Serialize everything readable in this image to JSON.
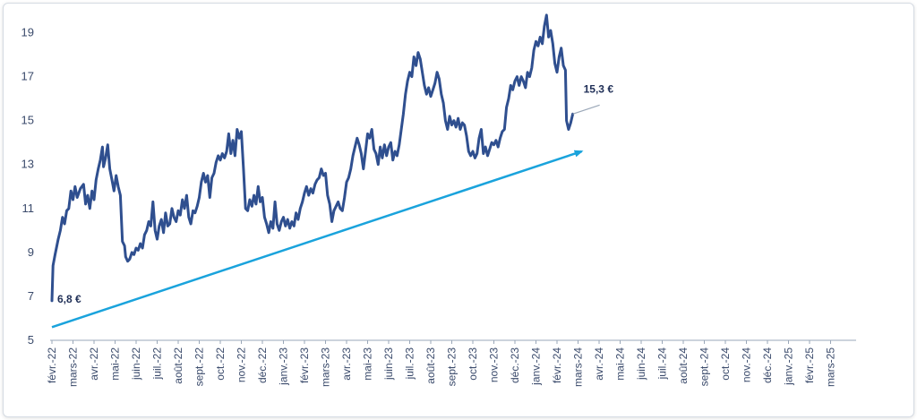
{
  "chart_data": {
    "type": "line",
    "title": "",
    "xlabel": "",
    "ylabel": "",
    "ylim": [
      5,
      20
    ],
    "yticks": [
      5,
      7,
      9,
      11,
      13,
      15,
      17,
      19
    ],
    "grid": false,
    "legend": "none",
    "line_color": "#2f4f8f",
    "trend_color": "#1aa3dc",
    "axis_color": "#9aa7b8",
    "x_labels": [
      "févr.-22",
      "mars-22",
      "avr.-22",
      "mai-22",
      "juin-22",
      "juil.-22",
      "août-22",
      "sept.-22",
      "oct.-22",
      "nov.-22",
      "déc.-22",
      "janv.-23",
      "févr.-23",
      "mars-23",
      "avr.-23",
      "mai-23",
      "juin-23",
      "juil.-23",
      "août-23",
      "sept.-23",
      "oct.-23",
      "nov.-23",
      "déc.-23",
      "janv.-24",
      "févr.-24",
      "mars-24",
      "avr.-24",
      "mai-24",
      "juin-24",
      "juil.-24",
      "août-24",
      "sept.-24",
      "oct.-24",
      "nov.-24",
      "déc.-24",
      "janv.-25",
      "févr.-25",
      "mars-25"
    ],
    "series": [
      {
        "values": [
          [
            0.0,
            6.8
          ],
          [
            0.05,
            8.4
          ],
          [
            0.15,
            8.9
          ],
          [
            0.3,
            9.6
          ],
          [
            0.4,
            10.0
          ],
          [
            0.5,
            10.6
          ],
          [
            0.6,
            10.3
          ],
          [
            0.7,
            10.9
          ],
          [
            0.8,
            11.0
          ],
          [
            0.9,
            11.8
          ],
          [
            1.0,
            11.4
          ],
          [
            1.1,
            12.0
          ],
          [
            1.2,
            11.5
          ],
          [
            1.35,
            11.9
          ],
          [
            1.5,
            12.1
          ],
          [
            1.6,
            11.2
          ],
          [
            1.7,
            11.6
          ],
          [
            1.8,
            11.0
          ],
          [
            1.9,
            11.8
          ],
          [
            2.0,
            11.4
          ],
          [
            2.1,
            12.3
          ],
          [
            2.2,
            12.8
          ],
          [
            2.3,
            13.2
          ],
          [
            2.4,
            13.8
          ],
          [
            2.45,
            12.9
          ],
          [
            2.55,
            13.3
          ],
          [
            2.65,
            13.9
          ],
          [
            2.75,
            12.8
          ],
          [
            2.85,
            12.3
          ],
          [
            2.95,
            11.8
          ],
          [
            3.05,
            12.5
          ],
          [
            3.15,
            12.0
          ],
          [
            3.25,
            11.6
          ],
          [
            3.35,
            9.5
          ],
          [
            3.45,
            9.3
          ],
          [
            3.5,
            8.8
          ],
          [
            3.6,
            8.6
          ],
          [
            3.7,
            8.7
          ],
          [
            3.8,
            9.0
          ],
          [
            3.9,
            8.9
          ],
          [
            4.0,
            9.2
          ],
          [
            4.1,
            9.1
          ],
          [
            4.2,
            9.4
          ],
          [
            4.3,
            9.2
          ],
          [
            4.4,
            9.8
          ],
          [
            4.5,
            10.0
          ],
          [
            4.6,
            10.4
          ],
          [
            4.7,
            10.2
          ],
          [
            4.8,
            11.3
          ],
          [
            4.9,
            10.0
          ],
          [
            5.0,
            9.6
          ],
          [
            5.1,
            10.2
          ],
          [
            5.2,
            10.5
          ],
          [
            5.3,
            9.9
          ],
          [
            5.4,
            10.8
          ],
          [
            5.5,
            10.2
          ],
          [
            5.6,
            10.3
          ],
          [
            5.7,
            11.0
          ],
          [
            5.8,
            10.6
          ],
          [
            5.9,
            10.4
          ],
          [
            6.0,
            10.9
          ],
          [
            6.1,
            10.7
          ],
          [
            6.2,
            11.4
          ],
          [
            6.3,
            11.0
          ],
          [
            6.4,
            11.6
          ],
          [
            6.5,
            10.6
          ],
          [
            6.6,
            10.3
          ],
          [
            6.7,
            10.9
          ],
          [
            6.8,
            10.8
          ],
          [
            6.9,
            11.1
          ],
          [
            7.0,
            11.5
          ],
          [
            7.1,
            12.2
          ],
          [
            7.2,
            12.6
          ],
          [
            7.3,
            12.2
          ],
          [
            7.4,
            12.5
          ],
          [
            7.5,
            11.5
          ],
          [
            7.6,
            12.4
          ],
          [
            7.7,
            12.6
          ],
          [
            7.8,
            13.1
          ],
          [
            7.9,
            13.4
          ],
          [
            8.0,
            13.2
          ],
          [
            8.1,
            13.5
          ],
          [
            8.2,
            13.3
          ],
          [
            8.3,
            13.6
          ],
          [
            8.4,
            14.4
          ],
          [
            8.5,
            13.5
          ],
          [
            8.6,
            14.1
          ],
          [
            8.7,
            13.4
          ],
          [
            8.8,
            14.6
          ],
          [
            8.9,
            14.2
          ],
          [
            9.0,
            14.5
          ],
          [
            9.1,
            12.8
          ],
          [
            9.2,
            11.0
          ],
          [
            9.3,
            10.9
          ],
          [
            9.4,
            11.4
          ],
          [
            9.5,
            11.1
          ],
          [
            9.6,
            11.6
          ],
          [
            9.7,
            11.2
          ],
          [
            9.8,
            12.0
          ],
          [
            9.9,
            11.3
          ],
          [
            10.0,
            11.5
          ],
          [
            10.1,
            10.6
          ],
          [
            10.2,
            10.3
          ],
          [
            10.3,
            9.9
          ],
          [
            10.4,
            10.4
          ],
          [
            10.5,
            10.1
          ],
          [
            10.6,
            11.3
          ],
          [
            10.7,
            10.3
          ],
          [
            10.8,
            10.0
          ],
          [
            10.9,
            10.4
          ],
          [
            11.0,
            10.6
          ],
          [
            11.1,
            10.2
          ],
          [
            11.2,
            10.5
          ],
          [
            11.3,
            10.1
          ],
          [
            11.4,
            10.4
          ],
          [
            11.5,
            10.2
          ],
          [
            11.6,
            10.8
          ],
          [
            11.7,
            10.5
          ],
          [
            11.8,
            11.0
          ],
          [
            11.9,
            11.3
          ],
          [
            12.0,
            11.7
          ],
          [
            12.1,
            12.0
          ],
          [
            12.2,
            11.6
          ],
          [
            12.3,
            11.9
          ],
          [
            12.4,
            11.7
          ],
          [
            12.5,
            12.1
          ],
          [
            12.6,
            12.3
          ],
          [
            12.7,
            12.4
          ],
          [
            12.8,
            12.8
          ],
          [
            12.9,
            12.5
          ],
          [
            13.0,
            12.6
          ],
          [
            13.1,
            11.6
          ],
          [
            13.2,
            11.2
          ],
          [
            13.3,
            10.4
          ],
          [
            13.4,
            10.9
          ],
          [
            13.5,
            11.1
          ],
          [
            13.6,
            11.3
          ],
          [
            13.7,
            11.0
          ],
          [
            13.8,
            10.9
          ],
          [
            13.9,
            11.5
          ],
          [
            14.0,
            12.2
          ],
          [
            14.1,
            12.4
          ],
          [
            14.2,
            12.8
          ],
          [
            14.3,
            13.4
          ],
          [
            14.4,
            13.8
          ],
          [
            14.5,
            14.2
          ],
          [
            14.6,
            13.9
          ],
          [
            14.7,
            13.5
          ],
          [
            14.8,
            12.8
          ],
          [
            14.9,
            13.6
          ],
          [
            15.0,
            14.4
          ],
          [
            15.1,
            14.2
          ],
          [
            15.2,
            14.6
          ],
          [
            15.3,
            13.7
          ],
          [
            15.4,
            13.5
          ],
          [
            15.5,
            13.0
          ],
          [
            15.6,
            13.8
          ],
          [
            15.7,
            13.3
          ],
          [
            15.8,
            13.9
          ],
          [
            15.9,
            13.4
          ],
          [
            16.0,
            13.8
          ],
          [
            16.1,
            14.0
          ],
          [
            16.2,
            13.2
          ],
          [
            16.3,
            13.6
          ],
          [
            16.4,
            13.4
          ],
          [
            16.5,
            13.9
          ],
          [
            16.6,
            14.6
          ],
          [
            16.7,
            15.3
          ],
          [
            16.8,
            16.2
          ],
          [
            16.9,
            16.8
          ],
          [
            17.0,
            17.2
          ],
          [
            17.1,
            17.0
          ],
          [
            17.2,
            17.9
          ],
          [
            17.3,
            17.5
          ],
          [
            17.4,
            18.1
          ],
          [
            17.5,
            17.8
          ],
          [
            17.6,
            17.2
          ],
          [
            17.7,
            16.6
          ],
          [
            17.8,
            16.2
          ],
          [
            17.9,
            16.5
          ],
          [
            18.0,
            16.1
          ],
          [
            18.1,
            16.4
          ],
          [
            18.2,
            16.7
          ],
          [
            18.3,
            17.2
          ],
          [
            18.4,
            16.9
          ],
          [
            18.5,
            16.2
          ],
          [
            18.6,
            15.8
          ],
          [
            18.7,
            15.0
          ],
          [
            18.8,
            14.6
          ],
          [
            18.9,
            15.2
          ],
          [
            19.0,
            14.8
          ],
          [
            19.1,
            15.0
          ],
          [
            19.2,
            14.7
          ],
          [
            19.3,
            15.1
          ],
          [
            19.4,
            14.6
          ],
          [
            19.5,
            14.9
          ],
          [
            19.6,
            14.8
          ],
          [
            19.7,
            14.3
          ],
          [
            19.8,
            13.6
          ],
          [
            19.9,
            13.4
          ],
          [
            20.0,
            13.6
          ],
          [
            20.1,
            13.3
          ],
          [
            20.2,
            13.5
          ],
          [
            20.3,
            14.2
          ],
          [
            20.4,
            14.6
          ],
          [
            20.5,
            13.5
          ],
          [
            20.6,
            13.8
          ],
          [
            20.7,
            13.4
          ],
          [
            20.8,
            13.7
          ],
          [
            20.9,
            14.0
          ],
          [
            21.0,
            13.9
          ],
          [
            21.1,
            14.1
          ],
          [
            21.2,
            13.8
          ],
          [
            21.3,
            14.2
          ],
          [
            21.4,
            14.5
          ],
          [
            21.5,
            14.6
          ],
          [
            21.6,
            15.6
          ],
          [
            21.7,
            16.0
          ],
          [
            21.8,
            16.6
          ],
          [
            21.9,
            16.4
          ],
          [
            22.0,
            16.8
          ],
          [
            22.1,
            17.0
          ],
          [
            22.2,
            16.6
          ],
          [
            22.3,
            17.0
          ],
          [
            22.4,
            16.8
          ],
          [
            22.5,
            16.5
          ],
          [
            22.6,
            17.2
          ],
          [
            22.7,
            17.0
          ],
          [
            22.8,
            17.4
          ],
          [
            22.9,
            18.2
          ],
          [
            23.0,
            18.6
          ],
          [
            23.1,
            18.4
          ],
          [
            23.2,
            18.8
          ],
          [
            23.3,
            18.5
          ],
          [
            23.4,
            19.3
          ],
          [
            23.5,
            19.8
          ],
          [
            23.6,
            18.8
          ],
          [
            23.7,
            19.1
          ],
          [
            23.8,
            18.5
          ],
          [
            23.9,
            17.6
          ],
          [
            24.0,
            17.2
          ],
          [
            24.1,
            17.9
          ],
          [
            24.2,
            18.3
          ],
          [
            24.3,
            17.5
          ],
          [
            24.4,
            17.3
          ],
          [
            24.45,
            15.0
          ],
          [
            24.55,
            14.6
          ],
          [
            24.65,
            14.9
          ],
          [
            24.75,
            15.3
          ]
        ]
      }
    ],
    "trend": {
      "from": [
        0.0,
        5.6
      ],
      "to": [
        24.75,
        13.6
      ]
    },
    "annotations": [
      {
        "label": "6,8 €",
        "x": 0.0,
        "y": 6.8
      },
      {
        "label": "15,3 €",
        "x": 24.75,
        "y": 15.3
      }
    ]
  }
}
